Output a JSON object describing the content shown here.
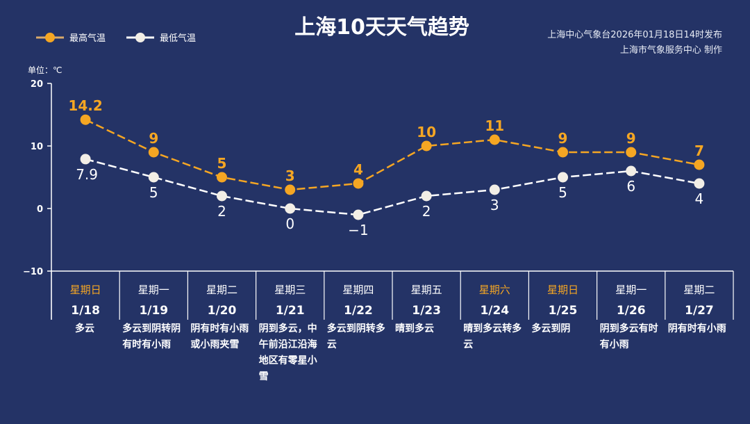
{
  "title": "上海10天天气趋势",
  "issuer_line1": "上海中心气象台2026年01月18日14时发布",
  "issuer_line2": "上海市气象服务中心  制作",
  "unit_label": "单位：℃",
  "colors": {
    "background": "#243366",
    "high": "#f5a623",
    "low": "#f2eee6",
    "weekend": "#f5a623"
  },
  "chart_data": {
    "type": "line",
    "ylim": [
      -10,
      20
    ],
    "yticks": [
      20,
      10,
      0,
      -10
    ],
    "ytick_labels": [
      "20",
      "10",
      "0",
      "−10"
    ],
    "grid": false,
    "legend_position": "top-left",
    "categories": [
      "1/18",
      "1/19",
      "1/20",
      "1/21",
      "1/22",
      "1/23",
      "1/24",
      "1/25",
      "1/26",
      "1/27"
    ],
    "weekdays": [
      "星期日",
      "星期一",
      "星期二",
      "星期三",
      "星期四",
      "星期五",
      "星期六",
      "星期日",
      "星期一",
      "星期二"
    ],
    "weekend": [
      true,
      false,
      false,
      false,
      false,
      false,
      true,
      true,
      false,
      false
    ],
    "weather": [
      "多云",
      "多云到阴转阴有时有小雨",
      "阴有时有小雨或小雨夹雪",
      "阴到多云，中午前沿江沿海地区有零星小雪",
      "多云到阴转多云",
      "晴到多云",
      "晴到多云转多云",
      "多云到阴",
      "阴到多云有时有小雨",
      "阴有时有小雨"
    ],
    "series": [
      {
        "name": "最高气温",
        "values": [
          14.2,
          9,
          5,
          3,
          4,
          10,
          11,
          9,
          9,
          7
        ],
        "labels": [
          "14.2",
          "9",
          "5",
          "3",
          "4",
          "10",
          "11",
          "9",
          "9",
          "7"
        ]
      },
      {
        "name": "最低气温",
        "values": [
          7.9,
          5,
          2,
          0,
          -1,
          2,
          3,
          5,
          6,
          4
        ],
        "labels": [
          "7.9",
          "5",
          "2",
          "0",
          "−1",
          "2",
          "3",
          "5",
          "6",
          "4"
        ]
      }
    ]
  }
}
